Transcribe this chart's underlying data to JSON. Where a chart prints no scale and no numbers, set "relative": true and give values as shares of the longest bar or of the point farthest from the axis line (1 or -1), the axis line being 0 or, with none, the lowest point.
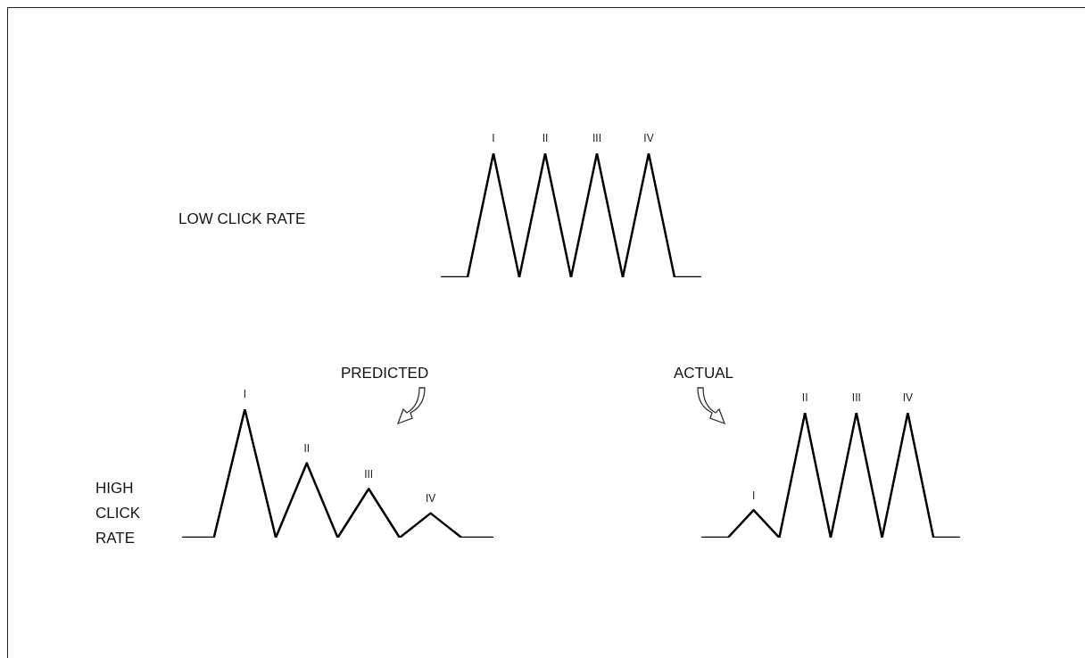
{
  "chart_data": [
    {
      "type": "line",
      "relative": true,
      "categories": [
        null,
        null,
        null,
        null,
        null,
        null,
        null,
        null,
        null,
        null,
        null
      ],
      "annotations": [
        "LOW CLICK RATE",
        {
          "text": "I",
          "y": 1
        },
        {
          "text": "II",
          "y": 1
        },
        {
          "text": "III",
          "y": 1
        },
        {
          "text": "IV",
          "y": 1
        }
      ],
      "series": [
        {
          "color": "#000000",
          "values": [
            0,
            0,
            1,
            0,
            1,
            0,
            1,
            0,
            1,
            0,
            0
          ]
        }
      ]
    },
    {
      "type": "line",
      "relative": true,
      "title": "PREDICTED",
      "categories": [
        null,
        null,
        null,
        null,
        null,
        null,
        null,
        null,
        null,
        null,
        null
      ],
      "annotations": [
        "HIGH CLICK RATE",
        {
          "text": "I",
          "y": 1
        },
        {
          "text": "II",
          "y": 0.58
        },
        {
          "text": "III",
          "y": 0.38
        },
        {
          "text": "IV",
          "y": 0.19
        }
      ],
      "series": [
        {
          "color": "#000000",
          "values": [
            0,
            0,
            1,
            0,
            0.58,
            0,
            0.38,
            0,
            0.19,
            0,
            0
          ]
        }
      ]
    },
    {
      "type": "line",
      "relative": true,
      "title": "ACTUAL",
      "categories": [
        null,
        null,
        null,
        null,
        null,
        null,
        null,
        null,
        null,
        null,
        null
      ],
      "annotations": [
        {
          "text": "I",
          "y": 0.22
        },
        {
          "text": "II",
          "y": 1
        },
        {
          "text": "III",
          "y": 1
        },
        {
          "text": "IV",
          "y": 1
        }
      ],
      "series": [
        {
          "color": "#000000",
          "values": [
            0,
            0,
            0.22,
            0,
            1,
            0,
            1,
            0,
            1,
            0,
            0
          ]
        }
      ]
    }
  ]
}
